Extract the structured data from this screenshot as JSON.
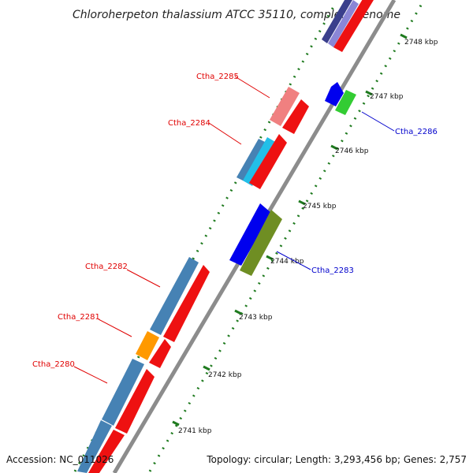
{
  "title": "Chloroherpeton thalassium ATCC 35110, complete genome",
  "footer": {
    "accession": "Accession: NC_011026",
    "topology": "Topology: circular; Length: 3,293,456 bp; Genes: 2,757"
  },
  "colors": {
    "backbone": "#8c8c8c",
    "tick": "#1e7a1e",
    "forward_label": "#e00000",
    "reverse_label": "#0000cc"
  },
  "ticks": [
    "2741 kbp",
    "2742 kbp",
    "2743 kbp",
    "2744 kbp",
    "2745 kbp",
    "2746 kbp",
    "2747 kbp",
    "2748 kbp"
  ],
  "labels": [
    {
      "text": "Ctha_2285",
      "color": "#e00000"
    },
    {
      "text": "Ctha_2284",
      "color": "#e00000"
    },
    {
      "text": "Ctha_2282",
      "color": "#e00000"
    },
    {
      "text": "Ctha_2281",
      "color": "#e00000"
    },
    {
      "text": "Ctha_2280",
      "color": "#e00000"
    },
    {
      "text": "Ctha_2286",
      "color": "#0000cc"
    },
    {
      "text": "Ctha_2283",
      "color": "#0000cc"
    }
  ]
}
